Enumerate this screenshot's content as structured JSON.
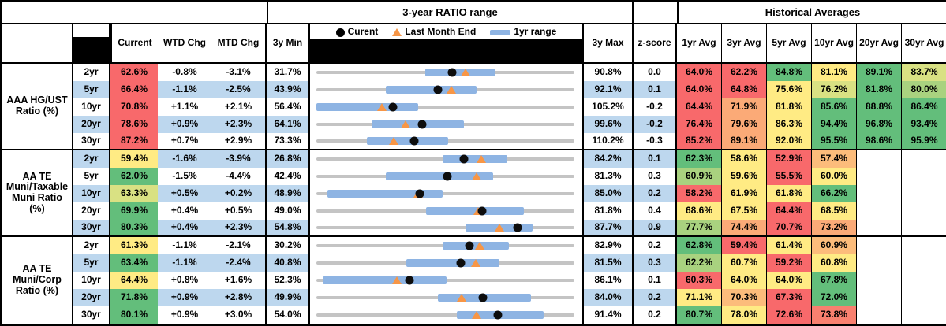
{
  "header": {
    "ratio_range_title": "3-year RATIO range",
    "historical_title": "Historical Averages",
    "col_current": "Current",
    "col_wtd": "WTD Chg",
    "col_mtd": "MTD Chg",
    "col_min": "3y Min",
    "col_max": "3y Max",
    "col_zscore": "z-score",
    "avg_labels": [
      "1yr Avg",
      "3yr Avg",
      "5yr Avg",
      "10yr Avg",
      "20yr Avg",
      "30yr Avg"
    ],
    "legend": {
      "current_label": "Curent",
      "last_month_label": "Last Month End",
      "range_label": "1yr range"
    }
  },
  "colors": {
    "stripe": "#BDD7EE",
    "track_gray": "#C4C4C4",
    "range_bar_blue": "#8EB4E3",
    "current_dot": "#0d0d0d",
    "last_month_triangle": "#F79646",
    "palette": {
      "red": "#F8696B",
      "salmon": "#F9806F",
      "orange": "#FBAA77",
      "lightorange": "#FCBC7B",
      "yellow": "#FFEB84",
      "yellowgreen": "#D9E183",
      "lightgreen": "#A9D27F",
      "green": "#63BE7B"
    }
  },
  "chart_data": {
    "type": "table",
    "description": "Municipal bond ratio monitor: current ratios, weekly/monthly changes, 3-year range bullet charts (current dot, last-month-end triangle, 1yr range bar), z-scores and historical averages. All values in percent.",
    "groups": [
      {
        "label": "AAA HG/UST Ratio (%)",
        "rows": [
          {
            "tenor": "2yr",
            "current": 62.6,
            "current_color": "red",
            "wtd_chg": -0.8,
            "mtd_chg": -3.1,
            "min_3y": 31.7,
            "max_3y": 90.8,
            "last_month_end": 65.7,
            "range_1yr": [
              56.4,
              72.5
            ],
            "z_score": "0.0",
            "averages": [
              [
                64.0,
                "red"
              ],
              [
                62.2,
                "red"
              ],
              [
                84.8,
                "green"
              ],
              [
                81.1,
                "yellow"
              ],
              [
                89.1,
                "green"
              ],
              [
                83.7,
                "yellowgreen"
              ]
            ]
          },
          {
            "tenor": "5yr",
            "current": 66.4,
            "current_color": "red",
            "wtd_chg": -1.1,
            "mtd_chg": -2.5,
            "min_3y": 43.9,
            "max_3y": 92.1,
            "last_month_end": 68.9,
            "range_1yr": [
              56.8,
              73.6
            ],
            "z_score": "0.1",
            "averages": [
              [
                64.0,
                "red"
              ],
              [
                64.8,
                "red"
              ],
              [
                75.6,
                "yellow"
              ],
              [
                76.2,
                "yellowgreen"
              ],
              [
                81.8,
                "green"
              ],
              [
                80.0,
                "lightgreen"
              ]
            ]
          },
          {
            "tenor": "10yr",
            "current": 70.8,
            "current_color": "red",
            "wtd_chg": 1.1,
            "mtd_chg": 2.1,
            "min_3y": 56.4,
            "max_3y": 105.2,
            "last_month_end": 68.7,
            "range_1yr": [
              56.4,
              75.6
            ],
            "z_score": "-0.2",
            "averages": [
              [
                64.4,
                "red"
              ],
              [
                71.9,
                "orange"
              ],
              [
                81.8,
                "yellow"
              ],
              [
                85.6,
                "green"
              ],
              [
                88.8,
                "green"
              ],
              [
                86.4,
                "green"
              ]
            ]
          },
          {
            "tenor": "20yr",
            "current": 78.6,
            "current_color": "red",
            "wtd_chg": 0.9,
            "mtd_chg": 2.3,
            "min_3y": 64.1,
            "max_3y": 99.6,
            "last_month_end": 76.3,
            "range_1yr": [
              71.7,
              84.3
            ],
            "z_score": "-0.2",
            "averages": [
              [
                76.4,
                "red"
              ],
              [
                79.6,
                "orange"
              ],
              [
                86.3,
                "yellow"
              ],
              [
                94.4,
                "green"
              ],
              [
                96.8,
                "green"
              ],
              [
                93.4,
                "green"
              ]
            ]
          },
          {
            "tenor": "30yr",
            "current": 87.2,
            "current_color": "red",
            "wtd_chg": 0.7,
            "mtd_chg": 2.9,
            "min_3y": 73.3,
            "max_3y": 110.2,
            "last_month_end": 84.3,
            "range_1yr": [
              80.5,
              92.0
            ],
            "z_score": "-0.3",
            "averages": [
              [
                85.2,
                "red"
              ],
              [
                89.1,
                "orange"
              ],
              [
                92.0,
                "yellow"
              ],
              [
                95.5,
                "green"
              ],
              [
                98.6,
                "green"
              ],
              [
                95.9,
                "green"
              ]
            ]
          }
        ]
      },
      {
        "label": "AA TE Muni/Taxable Muni Ratio (%)",
        "rows": [
          {
            "tenor": "2yr",
            "current": 59.4,
            "current_color": "yellow",
            "wtd_chg": -1.6,
            "mtd_chg": -3.9,
            "min_3y": 26.8,
            "max_3y": 84.2,
            "last_month_end": 63.3,
            "range_1yr": [
              54.7,
              69.1
            ],
            "z_score": "0.1",
            "averages": [
              [
                62.3,
                "green"
              ],
              [
                58.6,
                "yellow"
              ],
              [
                52.9,
                "red"
              ],
              [
                57.4,
                "lightorange"
              ],
              null,
              null
            ]
          },
          {
            "tenor": "5yr",
            "current": 62.0,
            "current_color": "green",
            "wtd_chg": -1.5,
            "mtd_chg": -4.4,
            "min_3y": 42.4,
            "max_3y": 81.3,
            "last_month_end": 66.4,
            "range_1yr": [
              52.8,
              68.9
            ],
            "z_score": "0.3",
            "averages": [
              [
                60.9,
                "lightgreen"
              ],
              [
                59.6,
                "yellow"
              ],
              [
                55.5,
                "red"
              ],
              [
                60.0,
                "yellow"
              ],
              null,
              null
            ]
          },
          {
            "tenor": "10yr",
            "current": 63.3,
            "current_color": "yellowgreen",
            "wtd_chg": 0.5,
            "mtd_chg": 0.2,
            "min_3y": 48.9,
            "max_3y": 85.0,
            "last_month_end": 63.1,
            "range_1yr": [
              50.4,
              66.5
            ],
            "z_score": "0.2",
            "averages": [
              [
                58.2,
                "red"
              ],
              [
                61.9,
                "yellow"
              ],
              [
                61.8,
                "yellow"
              ],
              [
                66.2,
                "green"
              ],
              null,
              null
            ]
          },
          {
            "tenor": "20yr",
            "current": 69.9,
            "current_color": "green",
            "wtd_chg": 0.4,
            "mtd_chg": 0.5,
            "min_3y": 49.0,
            "max_3y": 81.8,
            "last_month_end": 69.4,
            "range_1yr": [
              62.9,
              75.2
            ],
            "z_score": "0.4",
            "averages": [
              [
                68.6,
                "yellow"
              ],
              [
                67.5,
                "yellow"
              ],
              [
                64.4,
                "red"
              ],
              [
                68.5,
                "yellow"
              ],
              null,
              null
            ]
          },
          {
            "tenor": "30yr",
            "current": 80.3,
            "current_color": "green",
            "wtd_chg": 0.4,
            "mtd_chg": 2.3,
            "min_3y": 54.8,
            "max_3y": 87.7,
            "last_month_end": 78.0,
            "range_1yr": [
              73.7,
              82.2
            ],
            "z_score": "0.9",
            "averages": [
              [
                77.7,
                "lightgreen"
              ],
              [
                74.4,
                "orange"
              ],
              [
                70.7,
                "red"
              ],
              [
                73.2,
                "orange"
              ],
              null,
              null
            ]
          }
        ]
      },
      {
        "label": "AA TE Muni/Corp Ratio (%)",
        "rows": [
          {
            "tenor": "2yr",
            "current": 61.3,
            "current_color": "yellow",
            "wtd_chg": -1.1,
            "mtd_chg": -2.1,
            "min_3y": 30.2,
            "max_3y": 82.9,
            "last_month_end": 63.4,
            "range_1yr": [
              55.9,
              69.3
            ],
            "z_score": "0.2",
            "averages": [
              [
                62.8,
                "green"
              ],
              [
                59.4,
                "red"
              ],
              [
                61.4,
                "yellow"
              ],
              [
                60.9,
                "lightorange"
              ],
              null,
              null
            ]
          },
          {
            "tenor": "5yr",
            "current": 63.4,
            "current_color": "green",
            "wtd_chg": -1.1,
            "mtd_chg": -2.4,
            "min_3y": 40.8,
            "max_3y": 81.5,
            "last_month_end": 65.8,
            "range_1yr": [
              54.9,
              69.5
            ],
            "z_score": "0.3",
            "averages": [
              [
                62.2,
                "lightgreen"
              ],
              [
                60.7,
                "yellow"
              ],
              [
                59.2,
                "red"
              ],
              [
                60.8,
                "yellow"
              ],
              null,
              null
            ]
          },
          {
            "tenor": "10yr",
            "current": 64.4,
            "current_color": "yellow",
            "wtd_chg": 0.8,
            "mtd_chg": 1.6,
            "min_3y": 52.3,
            "max_3y": 86.1,
            "last_month_end": 62.8,
            "range_1yr": [
              53.1,
              69.3
            ],
            "z_score": "0.1",
            "averages": [
              [
                60.3,
                "red"
              ],
              [
                64.0,
                "yellow"
              ],
              [
                64.0,
                "yellow"
              ],
              [
                67.8,
                "green"
              ],
              null,
              null
            ]
          },
          {
            "tenor": "20yr",
            "current": 71.8,
            "current_color": "green",
            "wtd_chg": 0.9,
            "mtd_chg": 2.8,
            "min_3y": 49.9,
            "max_3y": 84.0,
            "last_month_end": 69.0,
            "range_1yr": [
              65.9,
              78.1
            ],
            "z_score": "0.2",
            "averages": [
              [
                71.1,
                "yellow"
              ],
              [
                70.3,
                "lightorange"
              ],
              [
                67.3,
                "red"
              ],
              [
                72.0,
                "green"
              ],
              null,
              null
            ]
          },
          {
            "tenor": "30yr",
            "current": 80.1,
            "current_color": "green",
            "wtd_chg": 0.9,
            "mtd_chg": 3.0,
            "min_3y": 54.0,
            "max_3y": 91.4,
            "last_month_end": 77.1,
            "range_1yr": [
              74.2,
              86.7
            ],
            "z_score": "0.2",
            "averages": [
              [
                80.7,
                "green"
              ],
              [
                78.0,
                "yellow"
              ],
              [
                72.6,
                "red"
              ],
              [
                73.8,
                "salmon"
              ],
              null,
              null
            ]
          }
        ]
      }
    ]
  }
}
